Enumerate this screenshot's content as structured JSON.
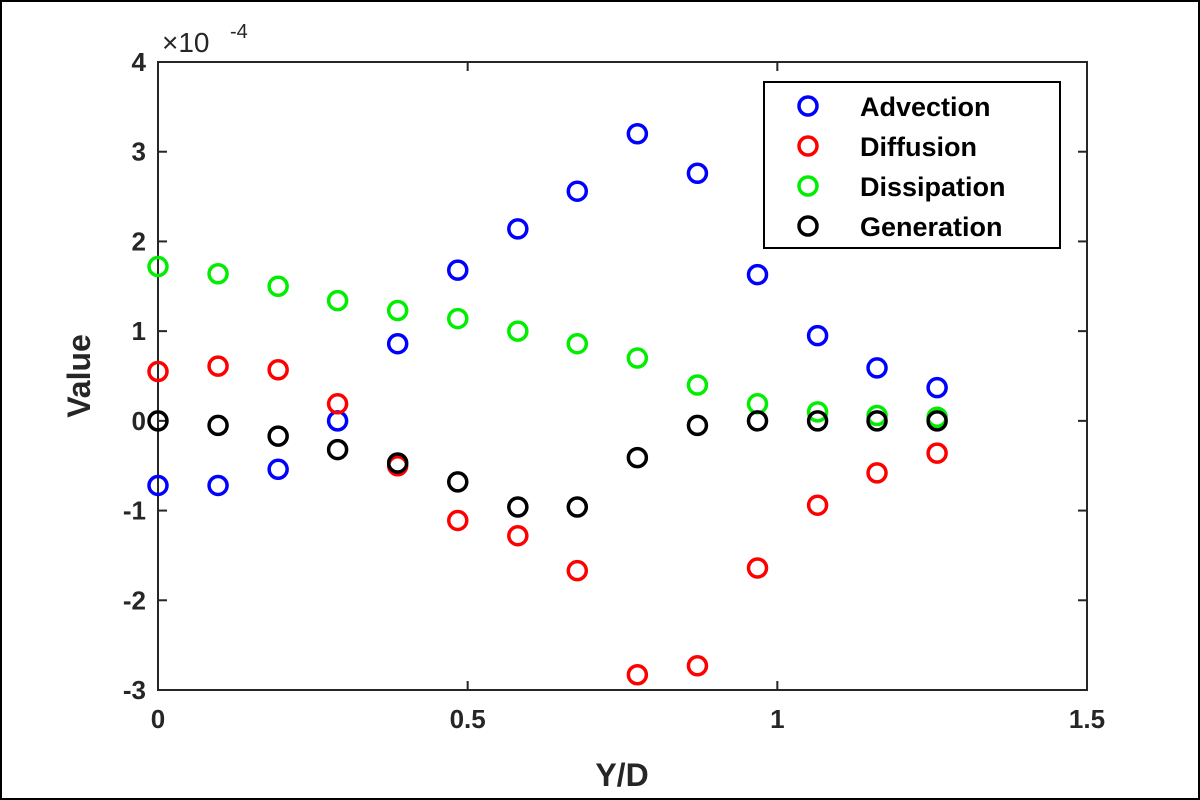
{
  "chart_data": {
    "type": "scatter",
    "xlabel": "Y/D",
    "ylabel": "Value",
    "xlim": [
      0,
      1.5
    ],
    "ylim": [
      -3,
      4
    ],
    "xticks": [
      0,
      0.5,
      1,
      1.5
    ],
    "xtick_labels": [
      "0",
      "0.5",
      "1",
      "1.5"
    ],
    "yticks": [
      -3,
      -2,
      -1,
      0,
      1,
      2,
      3,
      4
    ],
    "ytick_labels": [
      "-3",
      "-2",
      "-1",
      "0",
      "1",
      "2",
      "3",
      "4"
    ],
    "y_exponent": {
      "base": "×10",
      "power": "-4"
    },
    "grid": false,
    "legend_position": "top-right",
    "x": [
      0,
      0.097,
      0.194,
      0.29,
      0.387,
      0.484,
      0.581,
      0.677,
      0.774,
      0.871,
      0.968,
      1.065,
      1.161,
      1.258
    ],
    "series": [
      {
        "name": "Advection",
        "color": "#0000ff",
        "values": [
          -0.72,
          -0.72,
          -0.54,
          0.0,
          0.86,
          1.68,
          2.14,
          2.56,
          3.2,
          2.76,
          1.63,
          0.95,
          0.59,
          0.37
        ]
      },
      {
        "name": "Diffusion",
        "color": "#ff0000",
        "values": [
          0.55,
          0.61,
          0.57,
          0.19,
          -0.5,
          -1.11,
          -1.28,
          -1.67,
          -2.83,
          -2.73,
          -1.64,
          -0.94,
          -0.58,
          -0.36
        ]
      },
      {
        "name": "Dissipation",
        "color": "#00ee00",
        "values": [
          1.72,
          1.64,
          1.5,
          1.34,
          1.23,
          1.14,
          1.0,
          0.86,
          0.7,
          0.4,
          0.19,
          0.1,
          0.06,
          0.04
        ]
      },
      {
        "name": "Generation",
        "color": "#000000",
        "values": [
          0.0,
          -0.05,
          -0.17,
          -0.32,
          -0.47,
          -0.68,
          -0.96,
          -0.96,
          -0.41,
          -0.05,
          0.0,
          0.0,
          0.0,
          0.0
        ]
      }
    ]
  }
}
